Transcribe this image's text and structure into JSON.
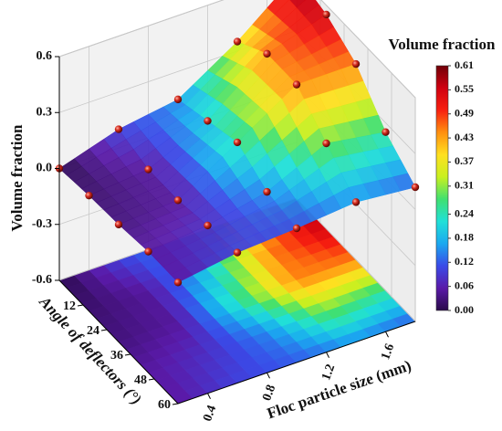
{
  "chart_data": {
    "type": "surface3d",
    "zlabel": "Volume fraction",
    "ylabel": "Angle of deflectors (°)",
    "xlabel": "Floc particle size (mm)",
    "x": [
      0.2,
      0.6,
      1.0,
      1.4,
      1.8
    ],
    "y": [
      0,
      15,
      30,
      45,
      60
    ],
    "values": [
      [
        0.0,
        0.1,
        0.15,
        0.35,
        0.6
      ],
      [
        0.02,
        0.05,
        0.2,
        0.45,
        0.55
      ],
      [
        0.03,
        0.05,
        0.25,
        0.45,
        0.45
      ],
      [
        0.05,
        0.08,
        0.15,
        0.3,
        0.25
      ],
      [
        0.05,
        0.1,
        0.12,
        0.15,
        0.12
      ]
    ],
    "xlim": [
      0.2,
      1.8
    ],
    "ylim": [
      0,
      60
    ],
    "zlim": [
      -0.6,
      0.6
    ],
    "xticks": [
      0.4,
      0.8,
      1.2,
      1.6
    ],
    "yticks": [
      12,
      24,
      36,
      48,
      60
    ],
    "zticks": [
      0.6,
      0.3,
      {
        "value": 0,
        "label": "0.0"
      },
      -0.3,
      -0.6
    ],
    "grid": true,
    "marker_color": "#d42a1e",
    "colorbar": {
      "title": "Volume fraction",
      "lim": [
        0,
        0.61
      ],
      "ticks": [
        0.61,
        0.55,
        0.49,
        0.43,
        0.37,
        0.31,
        0.24,
        0.18,
        0.12,
        0.06,
        {
          "value": 0,
          "label": "0.00"
        }
      ],
      "colors": [
        "#2a0a4a",
        "#5a1aa8",
        "#3a4ae8",
        "#1aa8f0",
        "#20e0d8",
        "#40e070",
        "#c8f020",
        "#ffe020",
        "#ff9010",
        "#f82010",
        "#d00010",
        "#700008"
      ]
    }
  }
}
